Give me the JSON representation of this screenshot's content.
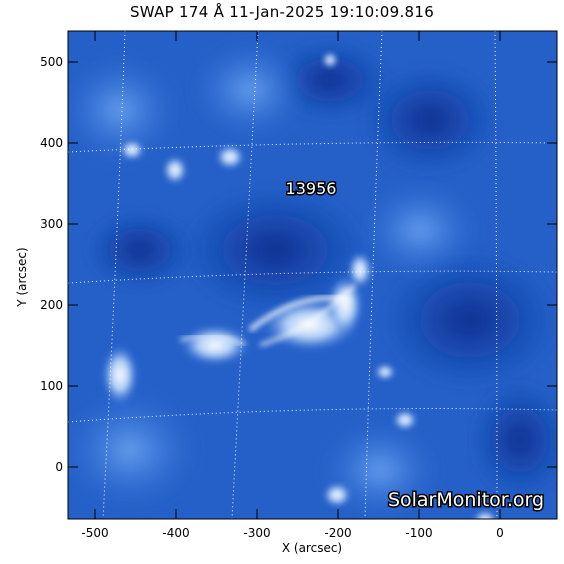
{
  "header": {
    "title": "SWAP 174 Å 11-Jan-2025 19:10:09.816"
  },
  "axes": {
    "xlabel": "X (arcsec)",
    "ylabel": "Y (arcsec)",
    "xticks": [
      "-500",
      "-400",
      "-300",
      "-200",
      "-100",
      "0"
    ],
    "yticks": [
      "500",
      "400",
      "300",
      "200",
      "100",
      "0"
    ]
  },
  "image": {
    "region_label": "13956",
    "watermark": "SolarMonitor.org"
  },
  "colors": {
    "base": "#0a2c8a",
    "mid": "#2f6fd8",
    "bright": "#ffffff"
  }
}
